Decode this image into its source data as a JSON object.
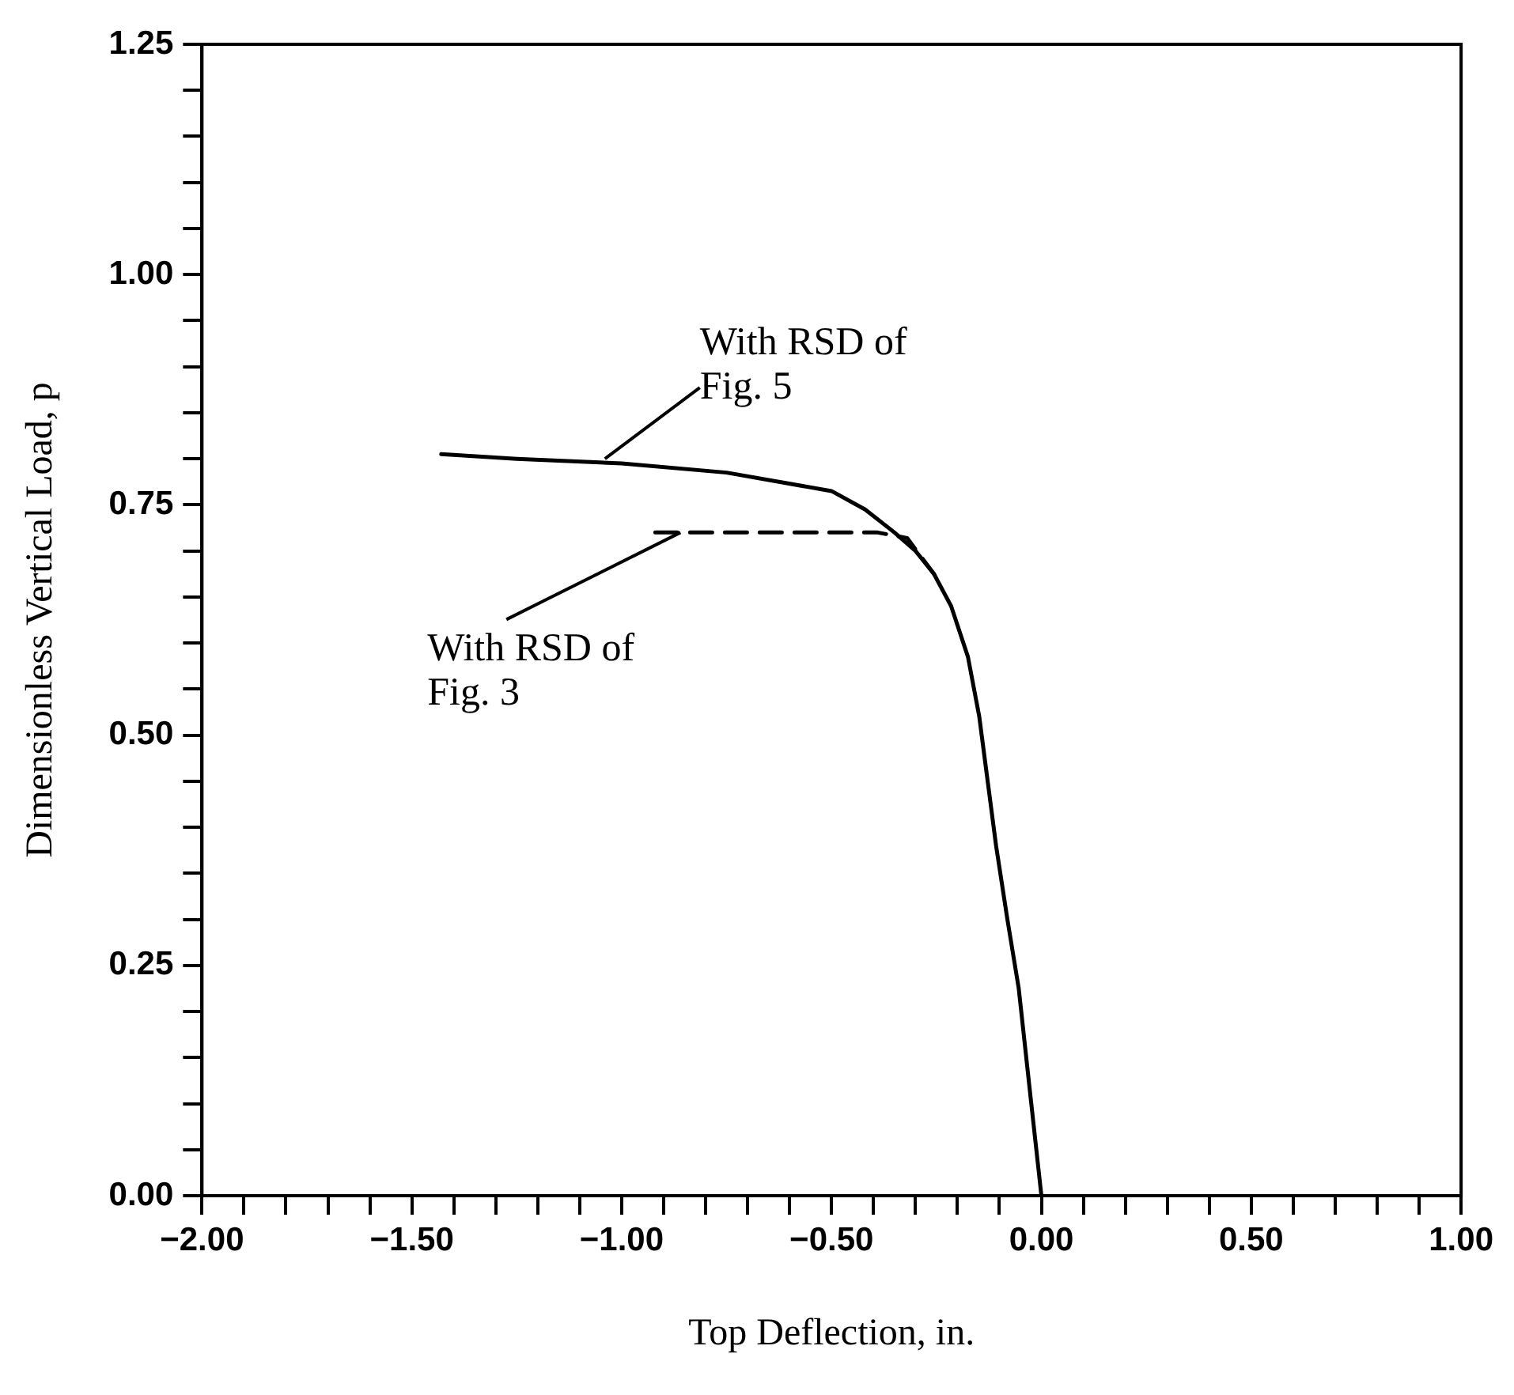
{
  "chart_data": {
    "type": "line",
    "xlabel": "Top Deflection, in.",
    "ylabel": "Dimensionless Vertical Load, p",
    "xlim": [
      -2,
      1
    ],
    "ylim": [
      0,
      1.25
    ],
    "xticks": [
      {
        "value": -2,
        "label": "−2.00"
      },
      {
        "value": -1.9,
        "label": null
      },
      {
        "value": -1.8,
        "label": null
      },
      {
        "value": -1.7,
        "label": null
      },
      {
        "value": -1.6,
        "label": null
      },
      {
        "value": -1.5,
        "label": "−1.50"
      },
      {
        "value": -1.4,
        "label": null
      },
      {
        "value": -1.3,
        "label": null
      },
      {
        "value": -1.2,
        "label": null
      },
      {
        "value": -1.1,
        "label": null
      },
      {
        "value": -1,
        "label": "−1.00"
      },
      {
        "value": -0.9,
        "label": null
      },
      {
        "value": -0.8,
        "label": null
      },
      {
        "value": -0.7,
        "label": null
      },
      {
        "value": -0.6,
        "label": null
      },
      {
        "value": -0.5,
        "label": "−0.50"
      },
      {
        "value": -0.4,
        "label": null
      },
      {
        "value": -0.3,
        "label": null
      },
      {
        "value": -0.2,
        "label": null
      },
      {
        "value": -0.1,
        "label": null
      },
      {
        "value": 0,
        "label": "0.00"
      },
      {
        "value": 0.1,
        "label": null
      },
      {
        "value": 0.2,
        "label": null
      },
      {
        "value": 0.3,
        "label": null
      },
      {
        "value": 0.4,
        "label": null
      },
      {
        "value": 0.5,
        "label": "0.50"
      },
      {
        "value": 0.6,
        "label": null
      },
      {
        "value": 0.7,
        "label": null
      },
      {
        "value": 0.8,
        "label": null
      },
      {
        "value": 0.9,
        "label": null
      },
      {
        "value": 1,
        "label": "1.00"
      }
    ],
    "yticks": [
      {
        "value": 0,
        "label": "0.00"
      },
      {
        "value": 0.05,
        "label": null
      },
      {
        "value": 0.1,
        "label": null
      },
      {
        "value": 0.15,
        "label": null
      },
      {
        "value": 0.2,
        "label": null
      },
      {
        "value": 0.25,
        "label": "0.25"
      },
      {
        "value": 0.3,
        "label": null
      },
      {
        "value": 0.35,
        "label": null
      },
      {
        "value": 0.4,
        "label": null
      },
      {
        "value": 0.45,
        "label": null
      },
      {
        "value": 0.5,
        "label": "0.50"
      },
      {
        "value": 0.55,
        "label": null
      },
      {
        "value": 0.6,
        "label": null
      },
      {
        "value": 0.65,
        "label": null
      },
      {
        "value": 0.7,
        "label": null
      },
      {
        "value": 0.75,
        "label": "0.75"
      },
      {
        "value": 0.8,
        "label": null
      },
      {
        "value": 0.85,
        "label": null
      },
      {
        "value": 0.9,
        "label": null
      },
      {
        "value": 0.95,
        "label": null
      },
      {
        "value": 1,
        "label": "1.00"
      },
      {
        "value": 1.05,
        "label": null
      },
      {
        "value": 1.1,
        "label": null
      },
      {
        "value": 1.15,
        "label": null
      },
      {
        "value": 1.2,
        "label": null
      },
      {
        "value": 1.25,
        "label": "1.25"
      }
    ],
    "grid": false,
    "legend": false,
    "marker": "none",
    "series": [
      {
        "color": "#000000",
        "line_style": "solid",
        "x": [
          -1.43,
          -1.25,
          -1,
          -0.75,
          -0.5,
          -0.42,
          -0.35,
          -0.3,
          -0.256,
          -0.215,
          -0.175,
          -0.148,
          -0.128,
          -0.108,
          -0.081,
          -0.054,
          -0.027,
          0
        ],
        "values": [
          0.805,
          0.8,
          0.795,
          0.785,
          0.765,
          0.745,
          0.72,
          0.7,
          0.675,
          0.64,
          0.585,
          0.52,
          0.45,
          0.38,
          0.3,
          0.225,
          0.112,
          0
        ]
      },
      {
        "color": "#000000",
        "line_style": "dashed",
        "x": [
          -0.92,
          -0.7,
          -0.5,
          -0.39,
          -0.32,
          -0.256
        ],
        "values": [
          0.72,
          0.72,
          0.72,
          0.72,
          0.714,
          0.675
        ]
      }
    ],
    "annotations": [
      {
        "text": "With RSD of\nFig. 5",
        "x": -1.04,
        "y": 0.8
      },
      {
        "text": "With RSD of\nFig. 3",
        "x": -0.86,
        "y": 0.72
      }
    ]
  }
}
